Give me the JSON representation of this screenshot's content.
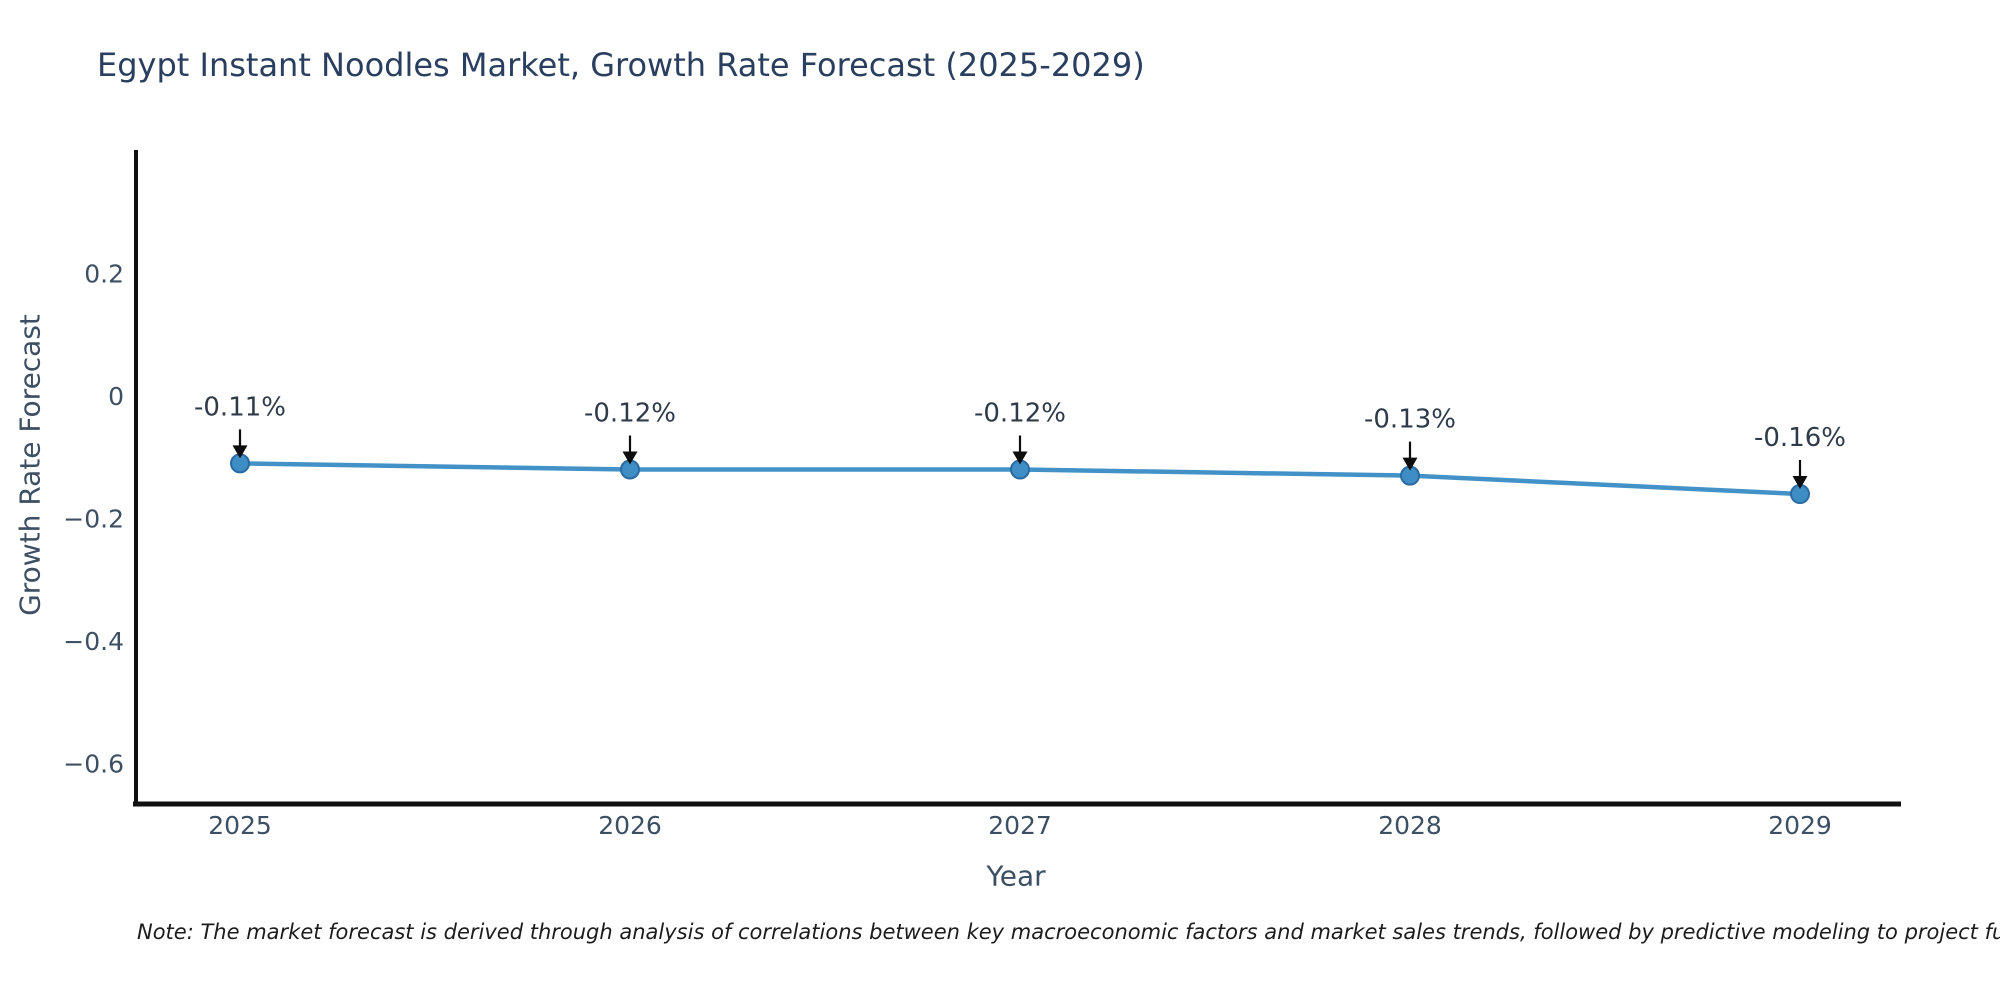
{
  "chart_data": {
    "type": "line",
    "title": "Egypt Instant Noodles Market, Growth Rate Forecast (2025-2029)",
    "xlabel": "Year",
    "ylabel": "Growth Rate Forecast",
    "x": [
      2025,
      2026,
      2027,
      2028,
      2029
    ],
    "series": [
      {
        "name": "Growth Rate Forecast",
        "values": [
          -0.11,
          -0.12,
          -0.12,
          -0.13,
          -0.16
        ]
      }
    ],
    "point_labels": [
      "-0.11%",
      "-0.12%",
      "-0.12%",
      "-0.13%",
      "-0.16%"
    ],
    "yticks": {
      "values": [
        0.2,
        0,
        -0.2,
        -0.4,
        -0.6
      ],
      "labels": [
        "0.2",
        "0",
        "−0.2",
        "−0.4",
        "−0.6"
      ]
    },
    "ylim": [
      -0.67,
      0.4
    ],
    "xlim": [
      2024.73,
      2029.27
    ],
    "grid": false,
    "legend_position": "none",
    "note": "Note: The market forecast is derived through analysis of correlations between key macroeconomic factors and market sales trends, followed by predictive modeling to project future sales",
    "colors": {
      "background": "#ffffff",
      "line": "#4292c8",
      "marker_fill": "#3f8dc5",
      "marker_edge": "#2a6ba3",
      "axis": "#111111",
      "text_dark": "#2a3f5f",
      "tick_text": "#3d4f63",
      "annotation_text": "#2f3b49",
      "arrow": "#0d0d0d",
      "note_text": "#1c1c1c"
    }
  }
}
